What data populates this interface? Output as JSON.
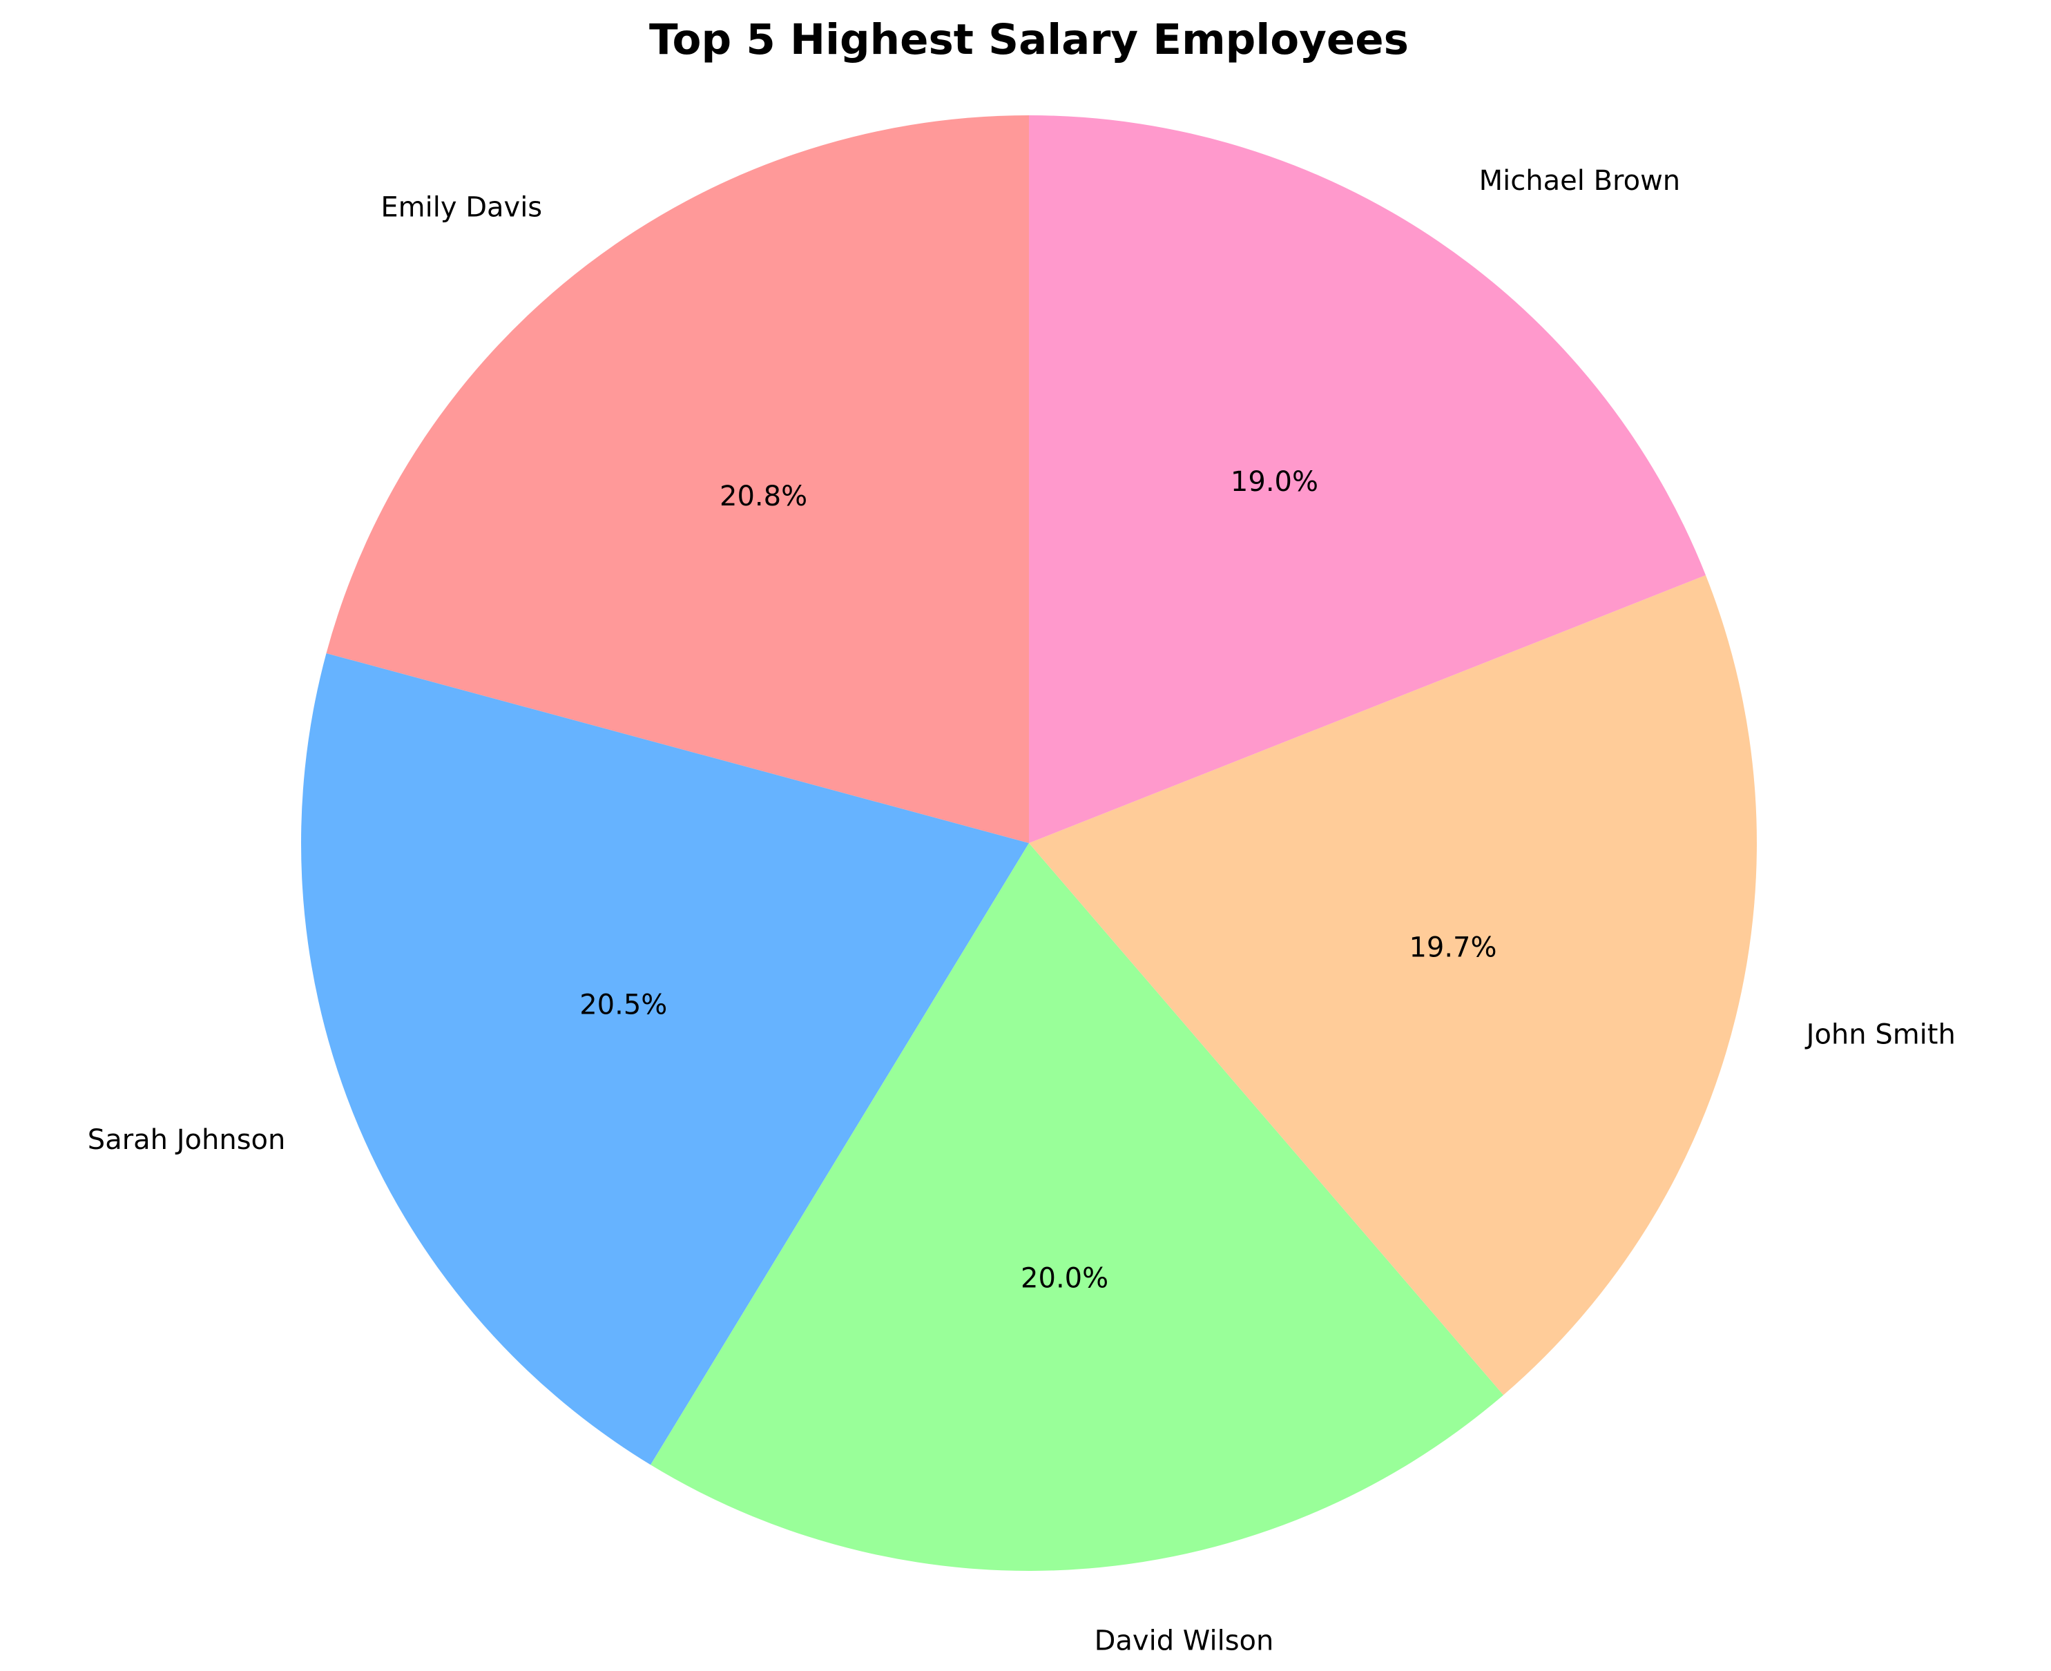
{
  "chart_data": {
    "type": "pie",
    "title": "Top 5 Highest Salary Employees",
    "start_angle_deg": 90,
    "direction": "counterclockwise",
    "slices": [
      {
        "name": "Emily Davis",
        "value": 20.8,
        "pct_label": "20.8%",
        "color": "#FF9999"
      },
      {
        "name": "Sarah Johnson",
        "value": 20.5,
        "pct_label": "20.5%",
        "color": "#66B3FF"
      },
      {
        "name": "David Wilson",
        "value": 20.0,
        "pct_label": "20.0%",
        "color": "#99FF99"
      },
      {
        "name": "John Smith",
        "value": 19.7,
        "pct_label": "19.7%",
        "color": "#FFCC99"
      },
      {
        "name": "Michael Brown",
        "value": 19.0,
        "pct_label": "19.0%",
        "color": "#FF99CC"
      }
    ]
  }
}
